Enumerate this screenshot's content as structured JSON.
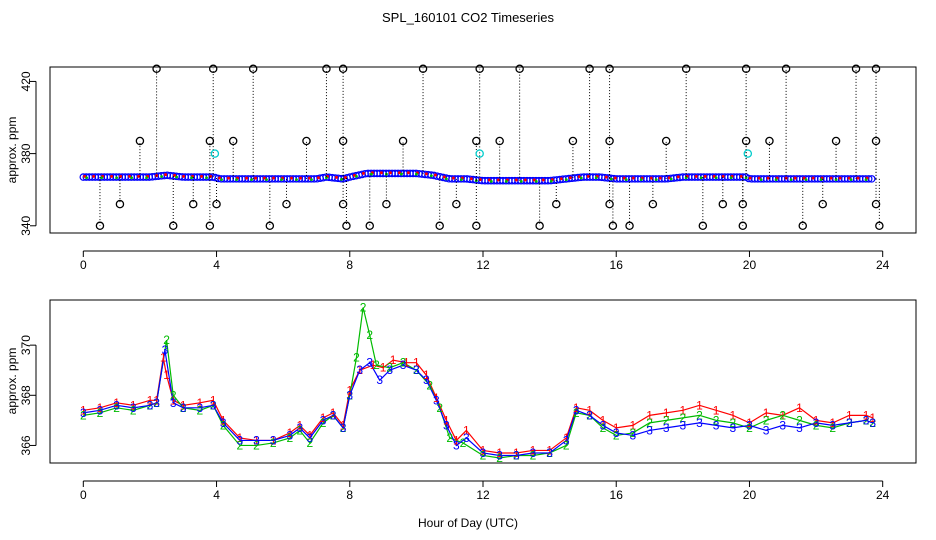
{
  "chart_data": [
    {
      "type": "scatter",
      "title": "SPL_160101  CO2 Timeseries",
      "xlabel": "",
      "ylabel": "approx. ppm",
      "xlim": [
        -1,
        25
      ],
      "ylim": [
        336,
        428
      ],
      "x_ticks": [
        0,
        4,
        8,
        12,
        16,
        20,
        24
      ],
      "y_ticks": [
        340,
        380,
        420
      ],
      "x_tick_labels": [
        "0",
        "4",
        "8",
        "12",
        "16",
        "20",
        "24"
      ],
      "y_tick_labels": [
        "340",
        "380",
        "420"
      ],
      "grid": false,
      "colors": {
        "main": "#0000ff",
        "overlay": "#ff0000",
        "green": "#00bb00",
        "cyan": "#00cccc",
        "outlier": "#000000"
      },
      "baseline": [
        [
          0.0,
          367.0
        ],
        [
          0.5,
          367.0
        ],
        [
          1.0,
          367.0
        ],
        [
          1.5,
          367.0
        ],
        [
          2.0,
          367.0
        ],
        [
          2.5,
          368.0
        ],
        [
          3.0,
          367.0
        ],
        [
          3.5,
          367.0
        ],
        [
          3.9,
          367.0
        ],
        [
          4.1,
          366.0
        ],
        [
          4.5,
          366.0
        ],
        [
          5.0,
          366.0
        ],
        [
          5.5,
          366.0
        ],
        [
          6.0,
          366.0
        ],
        [
          6.5,
          366.0
        ],
        [
          7.0,
          366.0
        ],
        [
          7.3,
          367.0
        ],
        [
          7.8,
          366.0
        ],
        [
          8.0,
          367.0
        ],
        [
          8.5,
          369.0
        ],
        [
          9.0,
          369.0
        ],
        [
          9.5,
          369.0
        ],
        [
          10.0,
          369.0
        ],
        [
          10.5,
          368.0
        ],
        [
          11.0,
          366.0
        ],
        [
          11.5,
          366.0
        ],
        [
          12.0,
          365.0
        ],
        [
          12.5,
          365.0
        ],
        [
          13.0,
          365.0
        ],
        [
          13.5,
          365.0
        ],
        [
          14.0,
          365.0
        ],
        [
          14.5,
          366.0
        ],
        [
          15.0,
          367.0
        ],
        [
          15.5,
          367.0
        ],
        [
          16.0,
          366.0
        ],
        [
          16.5,
          366.0
        ],
        [
          17.0,
          366.0
        ],
        [
          17.5,
          366.0
        ],
        [
          18.0,
          367.0
        ],
        [
          18.5,
          367.0
        ],
        [
          19.0,
          367.0
        ],
        [
          19.5,
          367.0
        ],
        [
          19.9,
          367.0
        ],
        [
          20.0,
          366.0
        ],
        [
          20.5,
          366.0
        ],
        [
          21.0,
          366.0
        ],
        [
          21.5,
          366.0
        ],
        [
          22.0,
          366.0
        ],
        [
          22.5,
          366.0
        ],
        [
          23.0,
          366.0
        ],
        [
          23.5,
          366.0
        ],
        [
          23.7,
          366.0
        ]
      ],
      "outliers_high": [
        2.2,
        3.9,
        5.1,
        7.3,
        7.8,
        10.2,
        11.9,
        13.1,
        15.2,
        15.8,
        18.1,
        19.9,
        21.1,
        23.2,
        23.8
      ],
      "outliers_mid": [
        1.7,
        3.8,
        4.5,
        6.7,
        7.8,
        9.6,
        11.8,
        12.5,
        14.7,
        15.8,
        17.5,
        19.9,
        20.6,
        22.6,
        23.8
      ],
      "outliers_low": [
        0.5,
        2.7,
        3.8,
        5.6,
        7.9,
        8.6,
        10.7,
        11.8,
        13.7,
        15.9,
        16.4,
        18.6,
        19.8,
        21.6,
        23.9
      ],
      "outliers_lowmid": [
        1.1,
        3.3,
        4.0,
        6.1,
        7.8,
        9.1,
        11.2,
        14.2,
        15.8,
        17.1,
        19.2,
        19.8,
        22.2,
        23.8
      ],
      "cyan_points": [
        [
          3.95,
          380.0
        ],
        [
          11.9,
          380.0
        ],
        [
          19.95,
          380.0
        ]
      ]
    },
    {
      "type": "line",
      "title": "",
      "xlabel": "Hour of Day (UTC)",
      "ylabel": "approx. ppm",
      "xlim": [
        -1,
        25
      ],
      "ylim": [
        365.3,
        371.8
      ],
      "x_ticks": [
        0,
        4,
        8,
        12,
        16,
        20,
        24
      ],
      "y_ticks": [
        366,
        368,
        370
      ],
      "x_tick_labels": [
        "0",
        "4",
        "8",
        "12",
        "16",
        "20",
        "24"
      ],
      "y_tick_labels": [
        "366",
        "368",
        "370"
      ],
      "grid": false,
      "marker_labels": [
        "1",
        "2",
        "3"
      ],
      "series": [
        {
          "marker": "1",
          "color": "#ff0000",
          "points": [
            [
              0.0,
              367.4
            ],
            [
              0.5,
              367.5
            ],
            [
              1.0,
              367.7
            ],
            [
              1.5,
              367.6
            ],
            [
              2.0,
              367.8
            ],
            [
              2.2,
              367.8
            ],
            [
              2.4,
              369.5
            ],
            [
              2.5,
              368.8
            ],
            [
              2.7,
              367.8
            ],
            [
              3.0,
              367.6
            ],
            [
              3.5,
              367.7
            ],
            [
              3.9,
              367.8
            ],
            [
              4.2,
              367.0
            ],
            [
              4.7,
              366.3
            ],
            [
              5.2,
              366.2
            ],
            [
              5.7,
              366.2
            ],
            [
              6.2,
              366.5
            ],
            [
              6.5,
              366.8
            ],
            [
              6.8,
              366.4
            ],
            [
              7.2,
              367.1
            ],
            [
              7.5,
              367.3
            ],
            [
              7.8,
              366.8
            ],
            [
              8.0,
              368.2
            ],
            [
              8.3,
              369.0
            ],
            [
              8.7,
              369.2
            ],
            [
              9.0,
              369.1
            ],
            [
              9.3,
              369.4
            ],
            [
              9.7,
              369.3
            ],
            [
              10.0,
              369.3
            ],
            [
              10.3,
              368.8
            ],
            [
              10.6,
              367.9
            ],
            [
              10.9,
              367.0
            ],
            [
              11.2,
              366.2
            ],
            [
              11.5,
              366.6
            ],
            [
              12.0,
              365.8
            ],
            [
              12.5,
              365.7
            ],
            [
              13.0,
              365.7
            ],
            [
              13.5,
              365.8
            ],
            [
              14.0,
              365.8
            ],
            [
              14.5,
              366.3
            ],
            [
              14.8,
              367.5
            ],
            [
              15.2,
              367.4
            ],
            [
              15.6,
              367.0
            ],
            [
              16.0,
              366.7
            ],
            [
              16.5,
              366.8
            ],
            [
              17.0,
              367.2
            ],
            [
              17.5,
              367.3
            ],
            [
              18.0,
              367.4
            ],
            [
              18.5,
              367.6
            ],
            [
              19.0,
              367.4
            ],
            [
              19.5,
              367.2
            ],
            [
              20.0,
              366.9
            ],
            [
              20.5,
              367.3
            ],
            [
              21.0,
              367.2
            ],
            [
              21.5,
              367.5
            ],
            [
              22.0,
              367.0
            ],
            [
              22.5,
              366.9
            ],
            [
              23.0,
              367.2
            ],
            [
              23.5,
              367.2
            ],
            [
              23.7,
              367.1
            ]
          ]
        },
        {
          "marker": "2",
          "color": "#00bb00",
          "points": [
            [
              0.0,
              367.2
            ],
            [
              0.5,
              367.3
            ],
            [
              1.0,
              367.5
            ],
            [
              1.5,
              367.4
            ],
            [
              2.0,
              367.6
            ],
            [
              2.2,
              367.7
            ],
            [
              2.5,
              370.2
            ],
            [
              2.7,
              368.0
            ],
            [
              3.0,
              367.5
            ],
            [
              3.5,
              367.4
            ],
            [
              3.9,
              367.6
            ],
            [
              4.2,
              366.8
            ],
            [
              4.7,
              366.0
            ],
            [
              5.2,
              366.0
            ],
            [
              5.7,
              366.1
            ],
            [
              6.2,
              366.3
            ],
            [
              6.5,
              366.6
            ],
            [
              6.8,
              366.1
            ],
            [
              7.2,
              366.9
            ],
            [
              7.5,
              367.2
            ],
            [
              7.8,
              366.7
            ],
            [
              8.0,
              368.0
            ],
            [
              8.2,
              369.5
            ],
            [
              8.4,
              371.5
            ],
            [
              8.6,
              370.4
            ],
            [
              8.8,
              369.2
            ],
            [
              9.2,
              369.1
            ],
            [
              9.6,
              369.3
            ],
            [
              10.0,
              369.0
            ],
            [
              10.4,
              368.4
            ],
            [
              10.7,
              367.5
            ],
            [
              11.0,
              366.3
            ],
            [
              11.4,
              366.1
            ],
            [
              12.0,
              365.6
            ],
            [
              12.5,
              365.5
            ],
            [
              13.0,
              365.6
            ],
            [
              13.5,
              365.6
            ],
            [
              14.0,
              365.7
            ],
            [
              14.5,
              366.0
            ],
            [
              14.8,
              367.3
            ],
            [
              15.2,
              367.2
            ],
            [
              15.6,
              366.7
            ],
            [
              16.0,
              366.4
            ],
            [
              16.5,
              366.5
            ],
            [
              17.0,
              366.9
            ],
            [
              17.5,
              367.0
            ],
            [
              18.0,
              367.1
            ],
            [
              18.5,
              367.2
            ],
            [
              19.0,
              367.0
            ],
            [
              19.5,
              366.9
            ],
            [
              20.0,
              366.7
            ],
            [
              20.5,
              367.0
            ],
            [
              21.0,
              367.2
            ],
            [
              21.5,
              367.0
            ],
            [
              22.0,
              366.8
            ],
            [
              22.5,
              366.7
            ],
            [
              23.0,
              366.9
            ],
            [
              23.5,
              367.0
            ],
            [
              23.7,
              366.9
            ]
          ]
        },
        {
          "marker": "3",
          "color": "#0000ff",
          "points": [
            [
              0.0,
              367.3
            ],
            [
              0.5,
              367.4
            ],
            [
              1.0,
              367.6
            ],
            [
              1.5,
              367.5
            ],
            [
              2.0,
              367.6
            ],
            [
              2.2,
              367.7
            ],
            [
              2.45,
              369.8
            ],
            [
              2.7,
              367.7
            ],
            [
              3.0,
              367.5
            ],
            [
              3.5,
              367.5
            ],
            [
              3.9,
              367.6
            ],
            [
              4.2,
              366.9
            ],
            [
              4.7,
              366.2
            ],
            [
              5.2,
              366.2
            ],
            [
              5.7,
              366.2
            ],
            [
              6.2,
              366.4
            ],
            [
              6.5,
              366.7
            ],
            [
              6.8,
              366.3
            ],
            [
              7.2,
              367.0
            ],
            [
              7.5,
              367.2
            ],
            [
              7.8,
              366.7
            ],
            [
              8.0,
              368.0
            ],
            [
              8.3,
              369.0
            ],
            [
              8.6,
              369.3
            ],
            [
              8.9,
              368.6
            ],
            [
              9.2,
              369.0
            ],
            [
              9.6,
              369.2
            ],
            [
              10.0,
              369.0
            ],
            [
              10.3,
              368.6
            ],
            [
              10.6,
              367.8
            ],
            [
              10.9,
              366.8
            ],
            [
              11.2,
              366.0
            ],
            [
              11.5,
              366.3
            ],
            [
              12.0,
              365.7
            ],
            [
              12.5,
              365.6
            ],
            [
              13.0,
              365.6
            ],
            [
              13.5,
              365.7
            ],
            [
              14.0,
              365.7
            ],
            [
              14.5,
              366.2
            ],
            [
              14.8,
              367.4
            ],
            [
              15.2,
              367.2
            ],
            [
              15.6,
              366.8
            ],
            [
              16.0,
              366.5
            ],
            [
              16.5,
              366.4
            ],
            [
              17.0,
              366.6
            ],
            [
              17.5,
              366.7
            ],
            [
              18.0,
              366.8
            ],
            [
              18.5,
              366.9
            ],
            [
              19.0,
              366.8
            ],
            [
              19.5,
              366.7
            ],
            [
              20.0,
              366.8
            ],
            [
              20.5,
              366.6
            ],
            [
              21.0,
              366.8
            ],
            [
              21.5,
              366.7
            ],
            [
              22.0,
              366.9
            ],
            [
              22.5,
              366.8
            ],
            [
              23.0,
              366.9
            ],
            [
              23.5,
              367.0
            ],
            [
              23.7,
              366.9
            ]
          ]
        }
      ]
    }
  ]
}
